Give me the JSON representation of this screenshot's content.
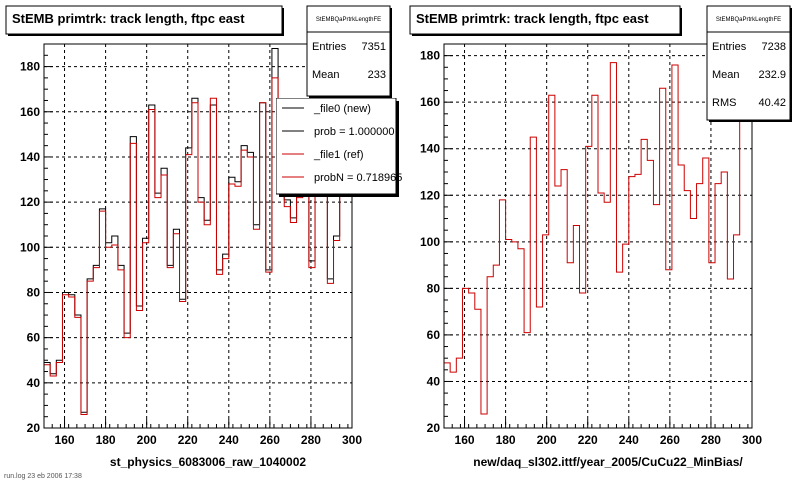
{
  "footer_fragment": "run.log 23   eb 2006 17:38",
  "chart_data": [
    {
      "type": "histogram-step",
      "title": "StEMB primtrk: track length, ftpc east",
      "xlabel": "st_physics_6083006_raw_1040002",
      "ylabel": "",
      "xlim": [
        150,
        300
      ],
      "ylim": [
        20,
        190
      ],
      "grid": true,
      "xticks": [
        160,
        180,
        200,
        220,
        240,
        260,
        280,
        300
      ],
      "yticks": [
        20,
        40,
        60,
        80,
        100,
        120,
        140,
        160,
        180
      ],
      "bin_width": 3,
      "stats": {
        "name": "StEMBQaPrtrkLengthFE",
        "rows": [
          {
            "label": "Entries",
            "value": "7351"
          },
          {
            "label": "Mean",
            "value": "233"
          }
        ]
      },
      "legend": {
        "placement": "top-right",
        "entries": [
          {
            "label": "_file0 (new)",
            "color": "#000000"
          },
          {
            "label": "prob = 1.000000",
            "color": "#000000"
          },
          {
            "label": "_file1 (ref)",
            "color": "#cc0000"
          },
          {
            "label": "probN = 0.718965",
            "color": "#cc0000"
          }
        ]
      },
      "series": [
        {
          "color": "#000000",
          "x": [
            150,
            153,
            156,
            159,
            162,
            165,
            168,
            171,
            174,
            177,
            180,
            183,
            186,
            189,
            192,
            195,
            198,
            201,
            204,
            207,
            210,
            213,
            216,
            219,
            222,
            225,
            228,
            231,
            234,
            237,
            240,
            243,
            246,
            249,
            252,
            255,
            258,
            261,
            264,
            267,
            270,
            273,
            276,
            279,
            282,
            285,
            288,
            291,
            294,
            297
          ],
          "values": [
            49,
            44,
            50,
            80,
            79,
            70,
            27,
            86,
            92,
            117,
            102,
            105,
            92,
            62,
            149,
            74,
            104,
            163,
            124,
            135,
            92,
            108,
            77,
            144,
            166,
            122,
            112,
            163,
            90,
            97,
            131,
            129,
            145,
            142,
            110,
            164,
            90,
            188,
            150,
            121,
            113,
            124,
            137,
            94,
            126,
            132,
            86,
            105,
            147,
            158
          ]
        },
        {
          "color": "#cc0000",
          "x": [
            150,
            153,
            156,
            159,
            162,
            165,
            168,
            171,
            174,
            177,
            180,
            183,
            186,
            189,
            192,
            195,
            198,
            201,
            204,
            207,
            210,
            213,
            216,
            219,
            222,
            225,
            228,
            231,
            234,
            237,
            240,
            243,
            246,
            249,
            252,
            255,
            258,
            261,
            264,
            267,
            270,
            273,
            276,
            279,
            282,
            285,
            288,
            291,
            294,
            297
          ],
          "values": [
            48,
            43,
            49,
            79,
            78,
            69,
            26,
            85,
            91,
            116,
            100,
            101,
            90,
            60,
            146,
            72,
            102,
            161,
            122,
            132,
            91,
            106,
            76,
            141,
            164,
            120,
            110,
            166,
            88,
            95,
            128,
            127,
            143,
            140,
            108,
            164,
            89,
            175,
            148,
            118,
            111,
            122,
            134,
            91,
            123,
            130,
            84,
            103,
            144,
            156
          ]
        }
      ]
    },
    {
      "type": "histogram-step",
      "title": "StEMB primtrk: track length, ftpc east",
      "xlabel": "new/daq_sl302.ittf/year_2005/CuCu22_MinBias/",
      "ylabel": "",
      "xlim": [
        150,
        300
      ],
      "ylim": [
        20,
        185
      ],
      "grid": true,
      "xticks": [
        160,
        180,
        200,
        220,
        240,
        260,
        280,
        300
      ],
      "yticks": [
        20,
        40,
        60,
        80,
        100,
        120,
        140,
        160,
        180
      ],
      "bin_width": 3,
      "stats": {
        "name": "StEMBQaPrtrkLengthFE",
        "rows": [
          {
            "label": "Entries",
            "value": "7238"
          },
          {
            "label": "Mean",
            "value": "232.9"
          },
          {
            "label": "RMS",
            "value": "40.42"
          }
        ]
      },
      "series": [
        {
          "color": "#cc0000",
          "x": [
            150,
            153,
            156,
            159,
            162,
            165,
            168,
            171,
            174,
            177,
            180,
            183,
            186,
            189,
            192,
            195,
            198,
            201,
            204,
            207,
            210,
            213,
            216,
            219,
            222,
            225,
            228,
            231,
            234,
            237,
            240,
            243,
            246,
            249,
            252,
            255,
            258,
            261,
            264,
            267,
            270,
            273,
            276,
            279,
            282,
            285,
            288,
            291,
            294,
            297
          ],
          "values": [
            48,
            44,
            50,
            80,
            78,
            71,
            26,
            85,
            90,
            118,
            101,
            100,
            97,
            61,
            145,
            72,
            103,
            163,
            124,
            131,
            91,
            107,
            78,
            141,
            163,
            121,
            117,
            177,
            87,
            99,
            128,
            129,
            144,
            135,
            116,
            166,
            88,
            176,
            133,
            122,
            110,
            125,
            136,
            91,
            125,
            130,
            84,
            103,
            152,
            157
          ]
        }
      ]
    }
  ]
}
